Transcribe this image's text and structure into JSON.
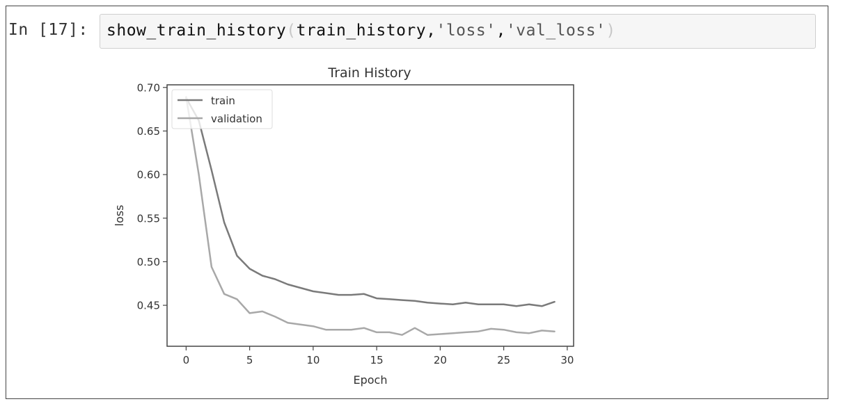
{
  "cell": {
    "prompt": "In [17]:",
    "func": "show_train_history",
    "open_paren": "(",
    "arg1": "train_history,",
    "arg2": "'loss'",
    "comma": ",",
    "arg3": "'val_loss'",
    "close_paren": ")"
  },
  "chart_data": {
    "type": "line",
    "title": "Train History",
    "xlabel": "Epoch",
    "ylabel": "loss",
    "xlim": [
      -1.5,
      30.5
    ],
    "ylim": [
      0.403,
      0.703
    ],
    "xticks": [
      0,
      5,
      10,
      15,
      20,
      25,
      30
    ],
    "yticks": [
      0.45,
      0.5,
      0.55,
      0.6,
      0.65,
      0.7
    ],
    "ytick_labels": [
      "0.45",
      "0.50",
      "0.55",
      "0.60",
      "0.65",
      "0.70"
    ],
    "legend_position": "upper-left",
    "x": [
      0,
      1,
      2,
      3,
      4,
      5,
      6,
      7,
      8,
      9,
      10,
      11,
      12,
      13,
      14,
      15,
      16,
      17,
      18,
      19,
      20,
      21,
      22,
      23,
      24,
      25,
      26,
      27,
      28,
      29
    ],
    "series": [
      {
        "name": "train",
        "color": "#7a7a7a",
        "values": [
          0.688,
          0.662,
          0.605,
          0.545,
          0.507,
          0.492,
          0.484,
          0.48,
          0.474,
          0.47,
          0.466,
          0.464,
          0.462,
          0.462,
          0.463,
          0.458,
          0.457,
          0.456,
          0.455,
          0.453,
          0.452,
          0.451,
          0.453,
          0.451,
          0.451,
          0.451,
          0.449,
          0.451,
          0.449,
          0.454
        ]
      },
      {
        "name": "validation",
        "color": "#a8a8a8",
        "values": [
          0.689,
          0.6,
          0.494,
          0.463,
          0.457,
          0.441,
          0.443,
          0.437,
          0.43,
          0.428,
          0.426,
          0.422,
          0.422,
          0.422,
          0.424,
          0.419,
          0.419,
          0.416,
          0.424,
          0.416,
          0.417,
          0.418,
          0.419,
          0.42,
          0.423,
          0.422,
          0.419,
          0.418,
          0.421,
          0.42
        ]
      }
    ]
  }
}
